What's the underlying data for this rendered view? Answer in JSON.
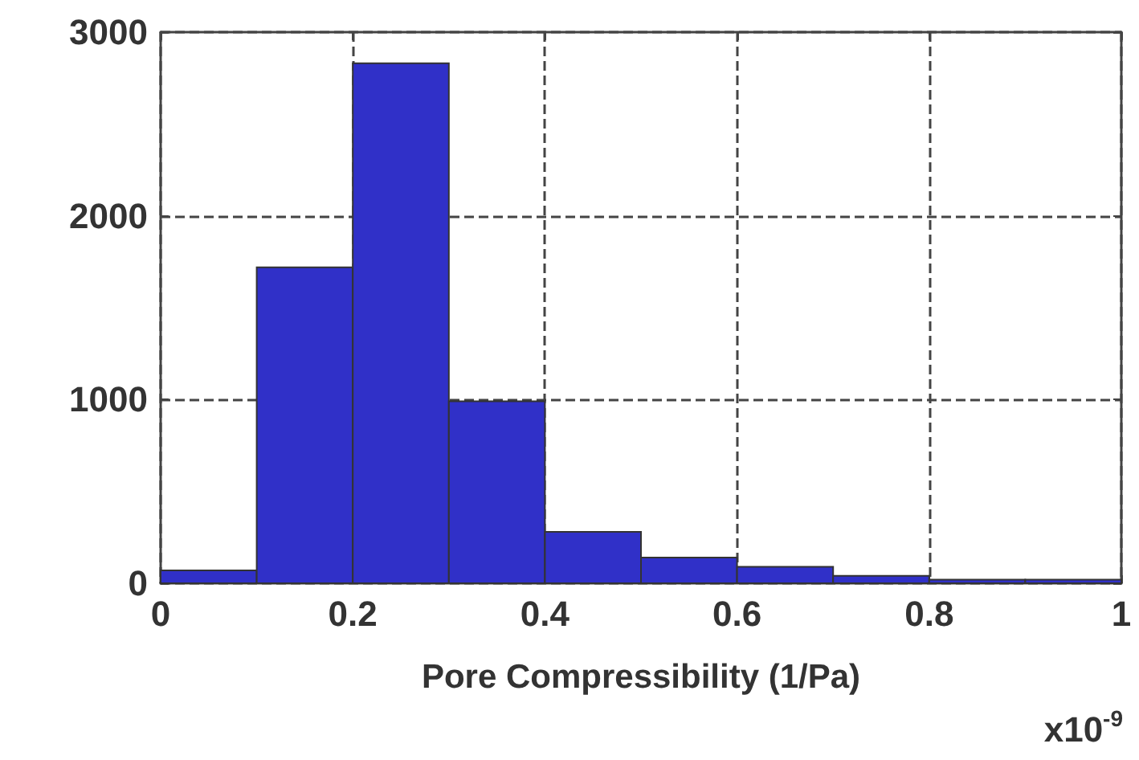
{
  "chart_data": {
    "type": "histogram",
    "xlabel": "Pore Compressibility (1/Pa)",
    "annotations": [
      "x10$^{-9}$"
    ],
    "bins": [
      0,
      0.1,
      0.2,
      0.3,
      0.4,
      0.5,
      0.6,
      0.7,
      0.8,
      0.9,
      1.0
    ],
    "values": [
      70,
      1720,
      2830,
      990,
      280,
      140,
      90,
      40,
      20,
      20
    ],
    "color": "#3030c8",
    "xlim": [
      0,
      1
    ],
    "xticks": [
      0,
      0.2,
      0.4,
      0.6,
      0.8,
      1
    ],
    "ylim": [
      0,
      3000
    ],
    "yticks": [
      0,
      1000,
      2000,
      3000
    ],
    "grid": true
  }
}
